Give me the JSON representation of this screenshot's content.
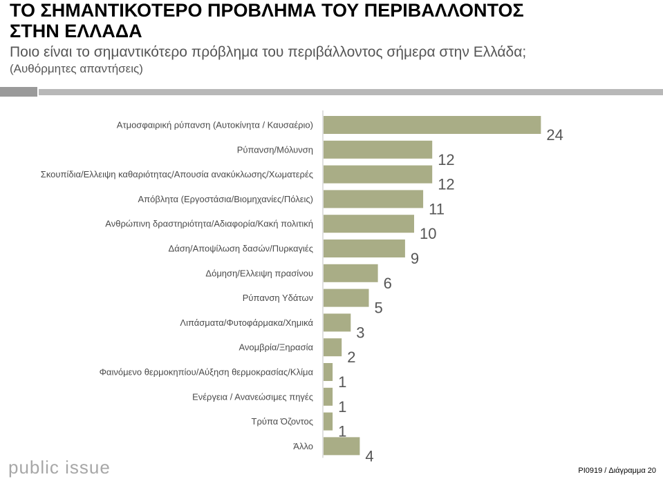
{
  "header": {
    "title": "ΤΟ ΣΗΜΑΝΤΙΚΟΤΕΡΟ ΠΡΟΒΛΗΜΑ ΤΟΥ ΠΕΡΙΒΑΛΛΟΝΤΟΣ ΣΤΗΝ ΕΛΛΑΔΑ",
    "subtitle": "Ποιο είναι το σημαντικότερο πρόβλημα του περιβάλλοντος σήμερα στην Ελλάδα;",
    "note": "(Αυθόρμητες απαντήσεις)"
  },
  "colors": {
    "bar": "#a9ad86",
    "label": "#4a4a4a",
    "value": "#555555",
    "axis": "#bfbfbf"
  },
  "chart_data": {
    "type": "bar",
    "orientation": "horizontal",
    "categories": [
      "Ατμοσφαιρική ρύπανση (Αυτοκίνητα / Καυσαέριο)",
      "Ρύπανση/Μόλυνση",
      "Σκουπίδια/Ελλειψη καθαριότητας/Απουσία ανακύκλωσης/Χωματερές",
      "Απόβλητα (Εργοστάσια/Βιομηχανίες/Πόλεις)",
      "Ανθρώπινη δραστηριότητα/Αδιαφορία/Κακή πολιτική",
      "Δάση/Αποψίλωση δασών/Πυρκαγιές",
      "Δόμηση/Ελλειψη πρασίνου",
      "Ρύπανση Υδάτων",
      "Λιπάσματα/Φυτοφάρμακα/Χημικά",
      "Ανομβρία/Ξηρασία",
      "Φαινόμενο θερμοκηπίου/Αύξηση θερμοκρασίας/Κλίμα",
      "Ενέργεια / Ανανεώσιμες πηγές",
      "Τρύπα Όζοντος",
      "Άλλο"
    ],
    "values": [
      24,
      12,
      12,
      11,
      10,
      9,
      6,
      5,
      3,
      2,
      1,
      1,
      1,
      4
    ],
    "xlim": [
      0,
      24
    ]
  },
  "branding": {
    "logo_text": "public issue",
    "footer": "PI0919 / Διάγραμμα 20"
  }
}
